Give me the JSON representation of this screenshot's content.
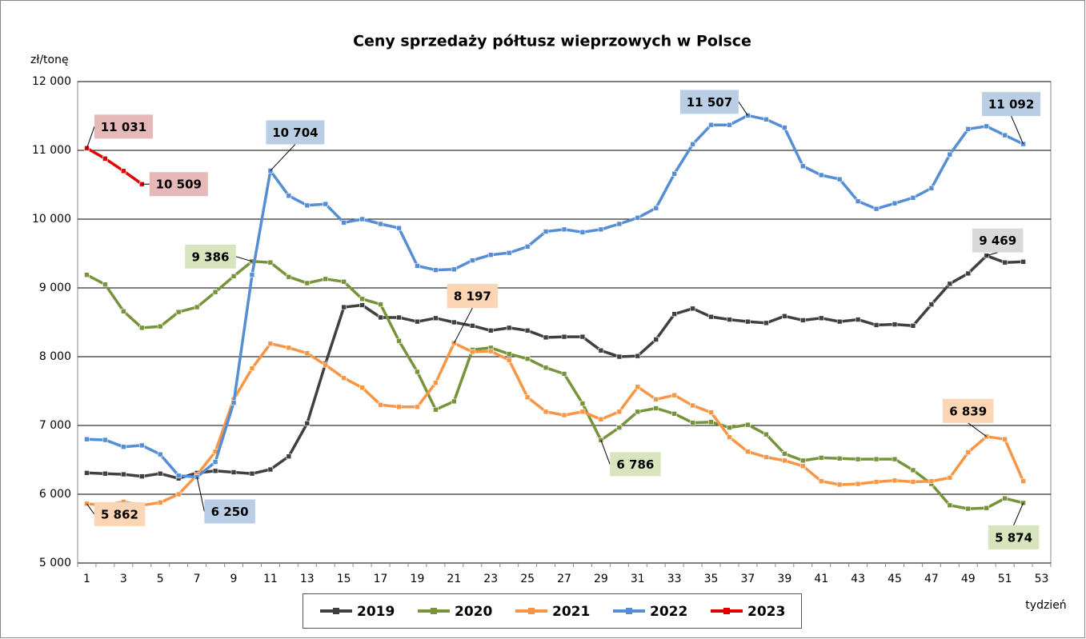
{
  "chart_data": {
    "type": "line",
    "title": "Ceny sprzedaży półtusz wieprzowych w Polsce",
    "y_label": "zł/tonę",
    "x_label": "tydzień",
    "categories": [
      "1",
      null,
      "3",
      null,
      "5",
      null,
      "7",
      null,
      "9",
      null,
      "11",
      null,
      "13",
      null,
      "15",
      null,
      "17",
      null,
      "19",
      null,
      "21",
      null,
      "23",
      null,
      "25",
      null,
      "27",
      null,
      "29",
      null,
      "31",
      null,
      "33",
      null,
      "35",
      null,
      "37",
      null,
      "39",
      null,
      "41",
      null,
      "43",
      null,
      "45",
      null,
      "47",
      null,
      "49",
      null,
      "51",
      null,
      "53"
    ],
    "ylim": [
      5000,
      12000
    ],
    "yticks": [
      {
        "value": 5000,
        "label": "5 000"
      },
      {
        "value": 6000,
        "label": "6 000"
      },
      {
        "value": 7000,
        "label": "7 000"
      },
      {
        "value": 8000,
        "label": "8 000"
      },
      {
        "value": 9000,
        "label": "9 000"
      },
      {
        "value": 10000,
        "label": "10 000"
      },
      {
        "value": 11000,
        "label": "11 000"
      },
      {
        "value": 12000,
        "label": "12 000"
      }
    ],
    "grid": true,
    "legend": "bottom",
    "series": [
      {
        "name": "2019",
        "color": "#404040",
        "label_color": "#d9d9d9",
        "values": [
          6310,
          6300,
          6290,
          6260,
          6300,
          6230,
          6310,
          6340,
          6320,
          6300,
          6360,
          6550,
          7030,
          7900,
          8720,
          8750,
          8570,
          8570,
          8510,
          8560,
          8500,
          8450,
          8380,
          8420,
          8380,
          8280,
          8290,
          8290,
          8090,
          8000,
          8010,
          8250,
          8620,
          8700,
          8580,
          8540,
          8510,
          8490,
          8590,
          8530,
          8560,
          8510,
          8540,
          8460,
          8470,
          8450,
          8760,
          9060,
          9210,
          9469,
          9370,
          9380,
          null
        ],
        "value_labels": [
          null,
          null,
          null,
          null,
          null,
          null,
          null,
          null,
          null,
          null,
          null,
          null,
          null,
          null,
          null,
          null,
          null,
          null,
          null,
          null,
          null,
          null,
          null,
          null,
          null,
          null,
          null,
          null,
          null,
          null,
          null,
          null,
          null,
          null,
          null,
          null,
          null,
          null,
          null,
          null,
          null,
          null,
          null,
          null,
          null,
          null,
          null,
          null,
          null,
          "9 469",
          null,
          null,
          null
        ]
      },
      {
        "name": "2020",
        "color": "#77933c",
        "label_color": "#d7e4bd",
        "values": [
          9190,
          9050,
          8660,
          8420,
          8440,
          8650,
          8720,
          8940,
          9170,
          9386,
          9370,
          9160,
          9070,
          9130,
          9090,
          8840,
          8760,
          8230,
          7780,
          7230,
          7350,
          8100,
          8130,
          8040,
          7970,
          7840,
          7750,
          7320,
          6786,
          6970,
          7200,
          7250,
          7170,
          7040,
          7050,
          6970,
          7010,
          6870,
          6590,
          6490,
          6530,
          6520,
          6510,
          6510,
          6510,
          6350,
          6150,
          5840,
          5790,
          5800,
          5940,
          5874,
          null
        ],
        "value_labels": [
          null,
          null,
          null,
          null,
          null,
          null,
          null,
          null,
          null,
          "9 386",
          null,
          null,
          null,
          null,
          null,
          null,
          null,
          null,
          null,
          null,
          null,
          null,
          null,
          null,
          null,
          null,
          null,
          null,
          "6 786",
          null,
          null,
          null,
          null,
          null,
          null,
          null,
          null,
          null,
          null,
          null,
          null,
          null,
          null,
          null,
          null,
          null,
          null,
          null,
          null,
          null,
          null,
          "5 874",
          null
        ]
      },
      {
        "name": "2021",
        "color": "#f79646",
        "label_color": "#fcd5b5",
        "values": [
          5862,
          5840,
          5890,
          5840,
          5880,
          6000,
          6280,
          6620,
          7380,
          7830,
          8190,
          8130,
          8050,
          7880,
          7690,
          7550,
          7300,
          7270,
          7270,
          7620,
          8197,
          8070,
          8080,
          7950,
          7410,
          7200,
          7150,
          7200,
          7090,
          7200,
          7560,
          7380,
          7440,
          7290,
          7190,
          6830,
          6620,
          6540,
          6490,
          6410,
          6190,
          6140,
          6150,
          6180,
          6200,
          6180,
          6190,
          6240,
          6610,
          6839,
          6800,
          6190,
          null
        ],
        "value_labels": [
          "5 862",
          null,
          null,
          null,
          null,
          null,
          null,
          null,
          null,
          null,
          null,
          null,
          null,
          null,
          null,
          null,
          null,
          null,
          null,
          null,
          "8 197",
          null,
          null,
          null,
          null,
          null,
          null,
          null,
          null,
          null,
          null,
          null,
          null,
          null,
          null,
          null,
          null,
          null,
          null,
          null,
          null,
          null,
          null,
          null,
          null,
          null,
          null,
          null,
          null,
          "6 839",
          null,
          null,
          null
        ]
      },
      {
        "name": "2022",
        "color": "#558ed5",
        "label_color": "#b9cde5",
        "values": [
          6800,
          6790,
          6690,
          6710,
          6580,
          6270,
          6250,
          6470,
          7330,
          9190,
          10704,
          10340,
          10200,
          10220,
          9950,
          10000,
          9930,
          9870,
          9320,
          9260,
          9270,
          9400,
          9480,
          9510,
          9600,
          9820,
          9850,
          9810,
          9850,
          9930,
          10020,
          10160,
          10660,
          11090,
          11370,
          11370,
          11507,
          11450,
          11330,
          10770,
          10640,
          10580,
          10260,
          10150,
          10230,
          10310,
          10450,
          10940,
          11310,
          11350,
          11220,
          11092,
          null
        ],
        "value_labels": [
          null,
          null,
          null,
          null,
          null,
          null,
          "6 250",
          null,
          null,
          null,
          "10 704",
          null,
          null,
          null,
          null,
          null,
          null,
          null,
          null,
          null,
          null,
          null,
          null,
          null,
          null,
          null,
          null,
          null,
          null,
          null,
          null,
          null,
          null,
          null,
          null,
          null,
          "11 507",
          null,
          null,
          null,
          null,
          null,
          null,
          null,
          null,
          null,
          null,
          null,
          null,
          null,
          null,
          "11 092",
          null
        ]
      },
      {
        "name": "2023",
        "color": "#e00000",
        "label_color": "#e6b9b8",
        "values": [
          11031,
          10880,
          10700,
          10509,
          null,
          null,
          null,
          null,
          null,
          null,
          null,
          null,
          null,
          null,
          null,
          null,
          null,
          null,
          null,
          null,
          null,
          null,
          null,
          null,
          null,
          null,
          null,
          null,
          null,
          null,
          null,
          null,
          null,
          null,
          null,
          null,
          null,
          null,
          null,
          null,
          null,
          null,
          null,
          null,
          null,
          null,
          null,
          null,
          null,
          null,
          null,
          null,
          null
        ],
        "value_labels": [
          "11 031",
          null,
          null,
          "10 509",
          null,
          null,
          null,
          null,
          null,
          null,
          null,
          null,
          null,
          null,
          null,
          null,
          null,
          null,
          null,
          null,
          null,
          null,
          null,
          null,
          null,
          null,
          null,
          null,
          null,
          null,
          null,
          null,
          null,
          null,
          null,
          null,
          null,
          null,
          null,
          null,
          null,
          null,
          null,
          null,
          null,
          null,
          null,
          null,
          null,
          null,
          null,
          null,
          null
        ]
      }
    ]
  }
}
